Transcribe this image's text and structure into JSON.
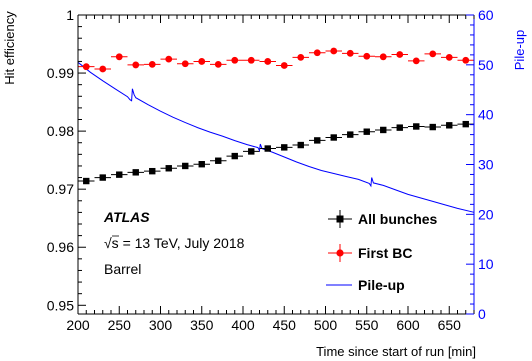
{
  "chart_data": {
    "type": "scatter",
    "xlabel": "Time since start of run [min]",
    "ylabel": "Hit efficiency",
    "y2label": "Pile-up",
    "xlim": [
      200,
      680
    ],
    "ylim": [
      0.9485,
      1.0
    ],
    "y2lim": [
      0,
      60
    ],
    "x_ticks": [
      200,
      250,
      300,
      350,
      400,
      450,
      500,
      550,
      600,
      650
    ],
    "y_ticks": [
      0.95,
      0.96,
      0.97,
      0.98,
      0.99,
      1
    ],
    "y_tick_labels": [
      "0.95",
      "0.96",
      "0.97",
      "0.98",
      "0.99",
      "1"
    ],
    "y2_ticks": [
      0,
      10,
      20,
      30,
      40,
      50,
      60
    ],
    "grid": false,
    "legend_position": "bottom-right",
    "annotation": {
      "experiment": "ATLAS",
      "sqrt_s": "√s",
      "energy": " = 13 TeV, July 2018",
      "region": "Barrel"
    },
    "series": [
      {
        "name": "All bunches",
        "marker": "square",
        "color": "#000000",
        "x_halfwidth": 10,
        "x": [
          210,
          230,
          250,
          270,
          290,
          310,
          330,
          350,
          370,
          390,
          410,
          430,
          450,
          470,
          490,
          510,
          530,
          550,
          570,
          590,
          610,
          630,
          650,
          670
        ],
        "y": [
          0.9714,
          0.972,
          0.9725,
          0.9729,
          0.9731,
          0.9736,
          0.974,
          0.9743,
          0.9749,
          0.9757,
          0.9765,
          0.977,
          0.9772,
          0.9776,
          0.9784,
          0.9789,
          0.9794,
          0.9799,
          0.9802,
          0.9806,
          0.9808,
          0.9807,
          0.981,
          0.9812
        ]
      },
      {
        "name": "First BC",
        "marker": "circle",
        "color": "#ff0000",
        "x_halfwidth": 10,
        "x": [
          210,
          230,
          250,
          270,
          290,
          310,
          330,
          350,
          370,
          390,
          410,
          430,
          450,
          470,
          490,
          510,
          530,
          550,
          570,
          590,
          610,
          630,
          650,
          670
        ],
        "y": [
          0.9911,
          0.9907,
          0.9928,
          0.9914,
          0.9915,
          0.9924,
          0.9916,
          0.992,
          0.9915,
          0.9922,
          0.9922,
          0.992,
          0.9913,
          0.9927,
          0.9935,
          0.9938,
          0.9934,
          0.9929,
          0.9928,
          0.9932,
          0.9921,
          0.9933,
          0.9927,
          0.9922
        ]
      },
      {
        "name": "Pile-up",
        "marker": "line",
        "color": "#0000ff",
        "axis": "right",
        "x": [
          200,
          215,
          230,
          245,
          260,
          263,
          265,
          266,
          268,
          270,
          285,
          300,
          315,
          330,
          345,
          360,
          375,
          390,
          405,
          418,
          420,
          421,
          423,
          435,
          450,
          465,
          480,
          495,
          510,
          525,
          540,
          553,
          555,
          556,
          558,
          570,
          585,
          600,
          615,
          630,
          645,
          660,
          680
        ],
        "y": [
          50.5,
          48.5,
          46.8,
          45.2,
          43.6,
          43.0,
          42.8,
          45.2,
          44.0,
          43.4,
          42.0,
          40.7,
          39.5,
          38.4,
          37.4,
          36.5,
          35.7,
          34.8,
          34.0,
          33.4,
          32.8,
          34.1,
          33.2,
          32.5,
          31.5,
          30.5,
          29.6,
          28.8,
          28.2,
          27.6,
          27.0,
          26.2,
          25.7,
          27.4,
          26.3,
          25.8,
          24.9,
          24.0,
          23.3,
          22.6,
          21.9,
          21.2,
          20.4
        ]
      }
    ]
  }
}
